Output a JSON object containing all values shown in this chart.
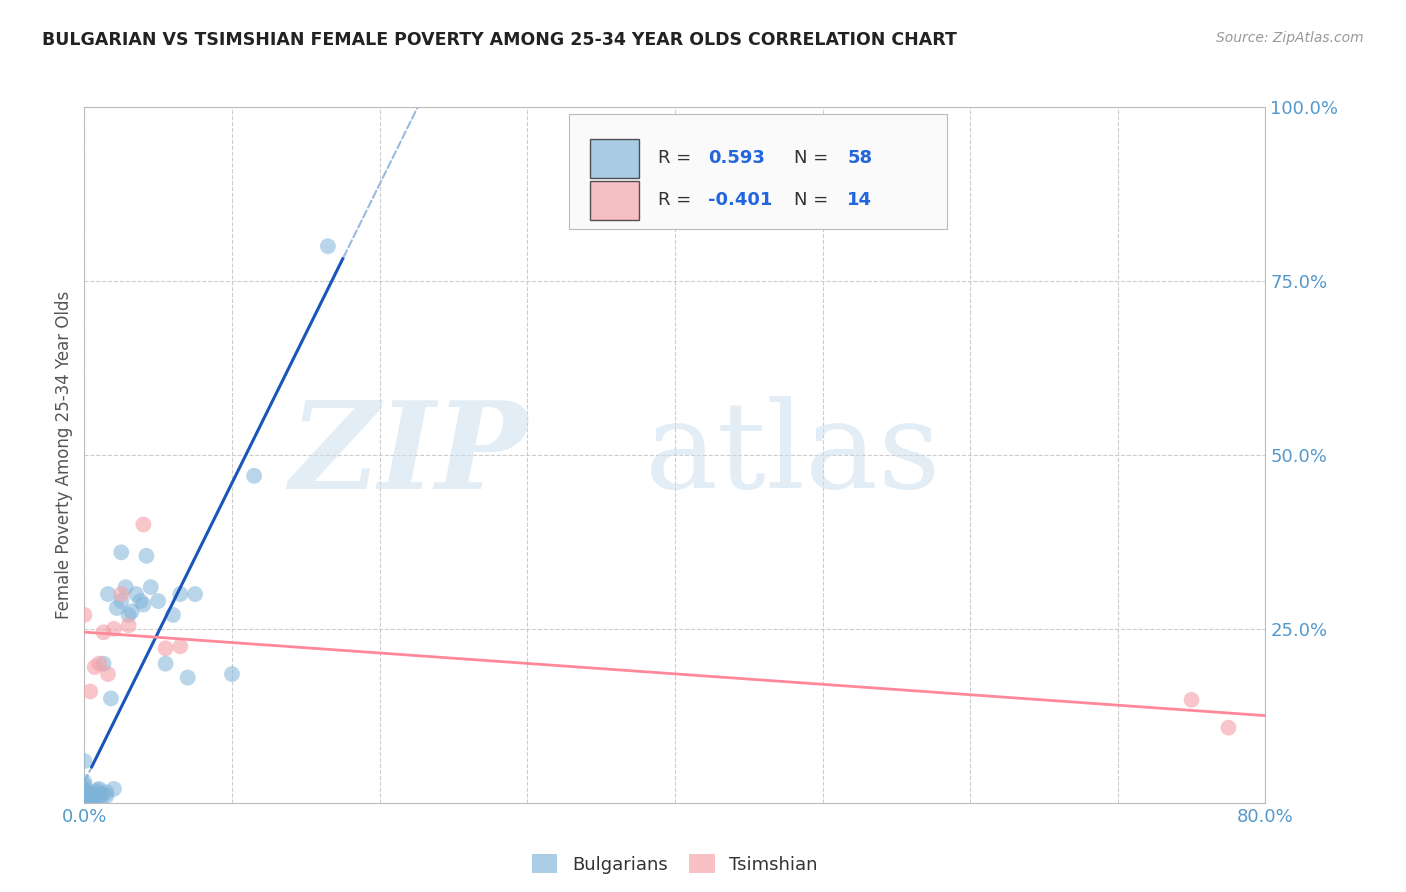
{
  "title": "BULGARIAN VS TSIMSHIAN FEMALE POVERTY AMONG 25-34 YEAR OLDS CORRELATION CHART",
  "source": "Source: ZipAtlas.com",
  "ylabel": "Female Poverty Among 25-34 Year Olds",
  "xlim": [
    0.0,
    0.8
  ],
  "ylim": [
    0.0,
    1.0
  ],
  "yticks": [
    0.25,
    0.5,
    0.75,
    1.0
  ],
  "ytick_labels": [
    "25.0%",
    "50.0%",
    "75.0%",
    "100.0%"
  ],
  "xtick_left": "0.0%",
  "xtick_right": "80.0%",
  "r_bulgarian": 0.593,
  "n_bulgarian": 58,
  "r_tsimshian": -0.401,
  "n_tsimshian": 14,
  "bulgarian_color": "#7EB3D8",
  "tsimshian_color": "#F4A0A8",
  "legend_label_bulgarian": "Bulgarians",
  "legend_label_tsimshian": "Tsimshian",
  "bg_color": "#FFFFFF",
  "grid_color": "#CCCCCC",
  "title_color": "#222222",
  "axis_label_color": "#555555",
  "tick_color": "#5599CC",
  "source_color": "#999999",
  "trend_blue_solid": "#1A55BB",
  "trend_blue_dash_color": "#99BBDD",
  "trend_pink": "#FF8899",
  "legend_text_dark": "#333333",
  "legend_text_blue": "#2266DD",
  "bulgarian_x": [
    0.0,
    0.0,
    0.0,
    0.0,
    0.0,
    0.0,
    0.0,
    0.0,
    0.0,
    0.0,
    0.0,
    0.0,
    0.0,
    0.0,
    0.0,
    0.0,
    0.0,
    0.0,
    0.0,
    0.0,
    0.003,
    0.004,
    0.005,
    0.005,
    0.006,
    0.007,
    0.008,
    0.009,
    0.01,
    0.01,
    0.011,
    0.012,
    0.013,
    0.015,
    0.015,
    0.016,
    0.018,
    0.02,
    0.022,
    0.025,
    0.025,
    0.028,
    0.03,
    0.032,
    0.035,
    0.038,
    0.04,
    0.042,
    0.045,
    0.05,
    0.055,
    0.06,
    0.065,
    0.07,
    0.075,
    0.1,
    0.115,
    0.165
  ],
  "bulgarian_y": [
    0.0,
    0.0,
    0.0,
    0.0,
    0.001,
    0.002,
    0.003,
    0.004,
    0.005,
    0.006,
    0.007,
    0.008,
    0.01,
    0.012,
    0.015,
    0.018,
    0.02,
    0.025,
    0.03,
    0.06,
    0.0,
    0.005,
    0.0,
    0.01,
    0.005,
    0.012,
    0.015,
    0.018,
    0.01,
    0.02,
    0.005,
    0.012,
    0.2,
    0.01,
    0.015,
    0.3,
    0.15,
    0.02,
    0.28,
    0.29,
    0.36,
    0.31,
    0.27,
    0.275,
    0.3,
    0.29,
    0.285,
    0.355,
    0.31,
    0.29,
    0.2,
    0.27,
    0.3,
    0.18,
    0.3,
    0.185,
    0.47,
    0.8
  ],
  "tsimshian_x": [
    0.0,
    0.004,
    0.007,
    0.01,
    0.013,
    0.016,
    0.02,
    0.025,
    0.03,
    0.04,
    0.055,
    0.065,
    0.75,
    0.775
  ],
  "tsimshian_y": [
    0.27,
    0.16,
    0.195,
    0.2,
    0.245,
    0.185,
    0.25,
    0.3,
    0.255,
    0.4,
    0.222,
    0.225,
    0.148,
    0.108
  ]
}
